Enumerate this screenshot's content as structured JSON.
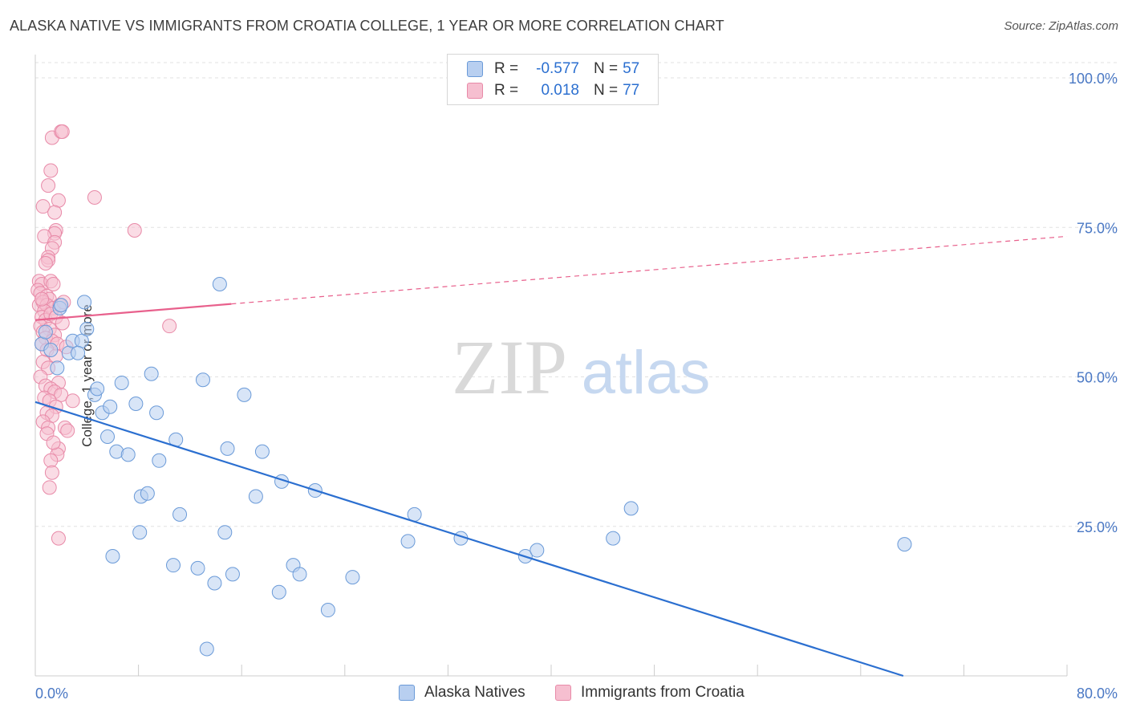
{
  "chart_data": {
    "type": "scatter",
    "title": "ALASKA NATIVE VS IMMIGRANTS FROM CROATIA COLLEGE, 1 YEAR OR MORE CORRELATION CHART",
    "source": "Source: ZipAtlas.com",
    "ylabel": "College, 1 year or more",
    "xlabel": "",
    "xlim": [
      0,
      80
    ],
    "ylim": [
      0,
      100
    ],
    "x_tick_labels": {
      "min": "0.0%",
      "max": "80.0%"
    },
    "y_tick_labels": [
      {
        "value": 100,
        "label": "100.0%"
      },
      {
        "value": 75,
        "label": "75.0%"
      },
      {
        "value": 50,
        "label": "50.0%"
      },
      {
        "value": 25,
        "label": "25.0%"
      }
    ],
    "watermark": {
      "zip": "ZIP",
      "atlas": "atlas"
    },
    "colors": {
      "blue_fill": "#b8cff0",
      "blue_stroke": "#6a9ad8",
      "blue_line": "#2b6fd0",
      "pink_fill": "#f6bfd0",
      "pink_stroke": "#e88aa8",
      "pink_line": "#e8608c",
      "tick_label": "#4a78c4",
      "grid": "#e2e2e2"
    },
    "legend": [
      {
        "key": "blue",
        "r_label": "R =",
        "r_value": "-0.577",
        "n_label": "N =",
        "n_value": "57"
      },
      {
        "key": "pink",
        "r_label": "R =",
        "r_value": "0.018",
        "n_label": "N =",
        "n_value": "77"
      }
    ],
    "series": [
      {
        "name": "Alaska Natives",
        "color_key": "blue",
        "trend": {
          "x0": 0,
          "y0": 45.8,
          "x1": 67.3,
          "y1": 0,
          "dashed_to": null
        },
        "points": [
          [
            0.5,
            55.5
          ],
          [
            0.8,
            57.5
          ],
          [
            1.2,
            54.5
          ],
          [
            1.7,
            51.5
          ],
          [
            1.9,
            61.5
          ],
          [
            2.0,
            62.0
          ],
          [
            2.6,
            54.0
          ],
          [
            2.9,
            56.0
          ],
          [
            3.6,
            56.0
          ],
          [
            3.3,
            54.0
          ],
          [
            3.8,
            62.5
          ],
          [
            4.0,
            58.0
          ],
          [
            4.6,
            47.0
          ],
          [
            4.8,
            48.0
          ],
          [
            5.2,
            44.0
          ],
          [
            5.8,
            45.0
          ],
          [
            5.6,
            40.0
          ],
          [
            6.3,
            37.5
          ],
          [
            6.7,
            49.0
          ],
          [
            7.2,
            37.0
          ],
          [
            7.8,
            45.5
          ],
          [
            8.1,
            24.0
          ],
          [
            8.2,
            30.0
          ],
          [
            8.7,
            30.5
          ],
          [
            9.0,
            50.5
          ],
          [
            9.4,
            44.0
          ],
          [
            9.6,
            36.0
          ],
          [
            10.7,
            18.5
          ],
          [
            10.9,
            39.5
          ],
          [
            11.2,
            27.0
          ],
          [
            12.6,
            18.0
          ],
          [
            13.0,
            49.5
          ],
          [
            13.3,
            4.5
          ],
          [
            13.9,
            15.5
          ],
          [
            14.3,
            65.5
          ],
          [
            14.7,
            24.0
          ],
          [
            14.9,
            38.0
          ],
          [
            15.3,
            17.0
          ],
          [
            16.2,
            47.0
          ],
          [
            17.1,
            30.0
          ],
          [
            17.6,
            37.5
          ],
          [
            18.9,
            14.0
          ],
          [
            19.1,
            32.5
          ],
          [
            20.0,
            18.5
          ],
          [
            20.5,
            17.0
          ],
          [
            21.7,
            31.0
          ],
          [
            22.7,
            11.0
          ],
          [
            24.6,
            16.5
          ],
          [
            28.9,
            22.5
          ],
          [
            29.4,
            27.0
          ],
          [
            33.0,
            23.0
          ],
          [
            38.0,
            20.0
          ],
          [
            38.9,
            21.0
          ],
          [
            44.8,
            23.0
          ],
          [
            46.2,
            28.0
          ],
          [
            67.4,
            22.0
          ],
          [
            6.0,
            20.0
          ]
        ]
      },
      {
        "name": "Immigrants from Croatia",
        "color_key": "pink",
        "trend": {
          "x0": 0,
          "y0": 59.5,
          "x1": 15.2,
          "y1": 62.2,
          "dashed_to": {
            "x": 80,
            "y": 73.5
          }
        },
        "points": [
          [
            1.3,
            90.0
          ],
          [
            2.0,
            91.0
          ],
          [
            2.1,
            91.0
          ],
          [
            1.2,
            84.5
          ],
          [
            4.6,
            80.0
          ],
          [
            1.0,
            82.0
          ],
          [
            0.6,
            78.5
          ],
          [
            1.8,
            79.5
          ],
          [
            1.5,
            77.5
          ],
          [
            1.6,
            74.5
          ],
          [
            1.5,
            74.0
          ],
          [
            7.7,
            74.5
          ],
          [
            0.7,
            73.5
          ],
          [
            1.5,
            72.5
          ],
          [
            1.3,
            71.5
          ],
          [
            1.0,
            70.0
          ],
          [
            1.0,
            69.5
          ],
          [
            0.8,
            69.0
          ],
          [
            0.3,
            66.0
          ],
          [
            0.5,
            65.5
          ],
          [
            1.2,
            66.0
          ],
          [
            1.4,
            65.5
          ],
          [
            0.2,
            64.5
          ],
          [
            0.4,
            64.0
          ],
          [
            0.9,
            63.5
          ],
          [
            1.1,
            63.0
          ],
          [
            0.3,
            62.0
          ],
          [
            0.6,
            62.5
          ],
          [
            0.9,
            62.0
          ],
          [
            1.4,
            61.5
          ],
          [
            1.9,
            62.0
          ],
          [
            2.2,
            62.5
          ],
          [
            0.7,
            61.0
          ],
          [
            0.5,
            60.0
          ],
          [
            0.8,
            59.5
          ],
          [
            1.2,
            60.5
          ],
          [
            0.4,
            58.5
          ],
          [
            1.1,
            58.0
          ],
          [
            0.6,
            57.5
          ],
          [
            1.5,
            57.0
          ],
          [
            10.4,
            58.5
          ],
          [
            0.8,
            56.5
          ],
          [
            1.3,
            56.0
          ],
          [
            1.7,
            55.5
          ],
          [
            2.4,
            55.0
          ],
          [
            0.5,
            55.5
          ],
          [
            0.9,
            54.5
          ],
          [
            1.6,
            53.5
          ],
          [
            0.6,
            52.5
          ],
          [
            1.0,
            51.5
          ],
          [
            0.4,
            50.0
          ],
          [
            1.8,
            49.0
          ],
          [
            0.8,
            48.5
          ],
          [
            1.2,
            48.0
          ],
          [
            1.5,
            47.5
          ],
          [
            2.0,
            47.0
          ],
          [
            0.7,
            46.5
          ],
          [
            1.1,
            46.0
          ],
          [
            2.9,
            46.0
          ],
          [
            1.6,
            45.0
          ],
          [
            0.9,
            44.0
          ],
          [
            1.3,
            43.5
          ],
          [
            0.6,
            42.5
          ],
          [
            2.3,
            41.5
          ],
          [
            2.5,
            41.0
          ],
          [
            1.0,
            41.5
          ],
          [
            1.8,
            38.0
          ],
          [
            1.7,
            37.0
          ],
          [
            1.2,
            36.0
          ],
          [
            1.3,
            34.0
          ],
          [
            1.1,
            31.5
          ],
          [
            1.8,
            23.0
          ],
          [
            0.9,
            40.5
          ],
          [
            1.4,
            39.0
          ],
          [
            0.5,
            63.0
          ],
          [
            1.6,
            60.0
          ],
          [
            2.1,
            59.0
          ]
        ]
      }
    ]
  }
}
